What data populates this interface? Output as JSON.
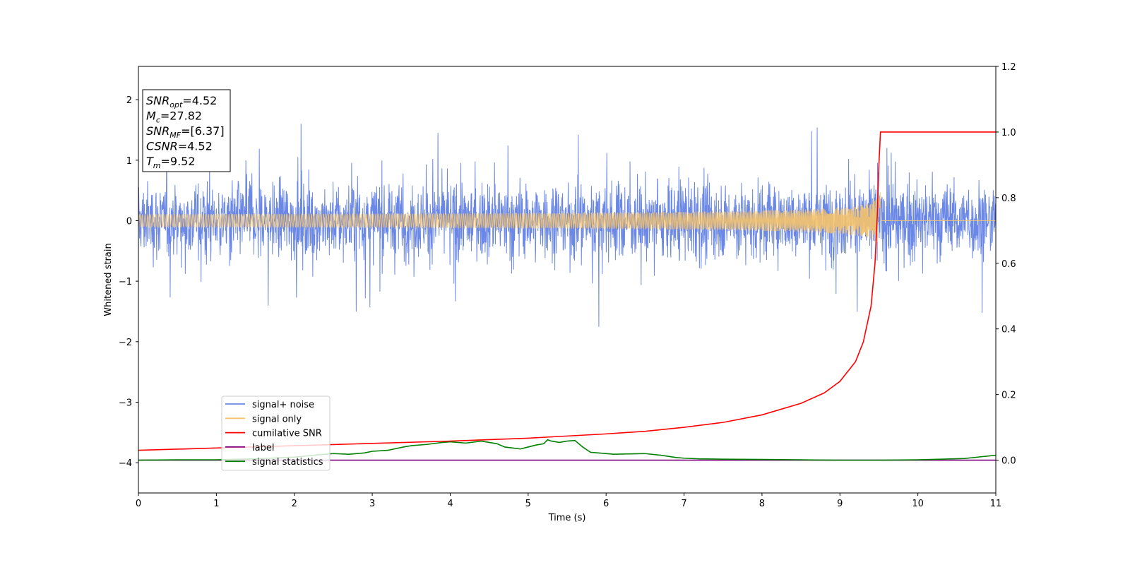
{
  "chart_data": {
    "type": "line",
    "xlabel": "Time (s)",
    "ylabel": "Whitened strain",
    "xlim": [
      0,
      11
    ],
    "ylim_left": [
      -4.5,
      2.55
    ],
    "ylim_right": [
      -0.1,
      1.2
    ],
    "x_ticks": [
      0,
      1,
      2,
      3,
      4,
      5,
      6,
      7,
      8,
      9,
      10,
      11
    ],
    "y_ticks_left": [
      -4,
      -3,
      -2,
      -1,
      0,
      1,
      2
    ],
    "y_ticks_right": [
      0.0,
      0.2,
      0.4,
      0.6,
      0.8,
      1.0,
      1.2
    ],
    "grid": false,
    "legend_placement": "lower-left",
    "info_box": {
      "lines": [
        {
          "italic": "SNR",
          "sub": "opt",
          "rest": "=4.52"
        },
        {
          "italic": "M",
          "sub": "c",
          "rest": "=27.82"
        },
        {
          "italic": "SNR",
          "sub": "MF",
          "rest": "=[6.37]"
        },
        {
          "italic": "CSNR",
          "sub": "",
          "rest": "=4.52"
        },
        {
          "italic": "T",
          "sub": "m",
          "rest": "=9.52"
        }
      ]
    },
    "series": [
      {
        "name": "signal+ noise",
        "axis": "left",
        "color": "#6b88e6",
        "description_values": {
          "mean": 0,
          "amplitude_range": [
            -1.9,
            1.6
          ]
        }
      },
      {
        "name": "signal only",
        "axis": "left",
        "color": "#f5c36b",
        "chirp_merger_time": 9.52,
        "peak_amplitude": 0.5
      },
      {
        "name": "cumilative SNR",
        "axis": "right",
        "color": "#ff0000",
        "x": [
          0,
          1,
          2,
          3,
          4,
          5,
          6,
          6.5,
          7,
          7.5,
          8,
          8.5,
          8.8,
          9.0,
          9.2,
          9.3,
          9.4,
          9.45,
          9.48,
          9.5,
          9.52,
          11
        ],
        "y": [
          0.03,
          0.037,
          0.044,
          0.051,
          0.058,
          0.067,
          0.08,
          0.088,
          0.1,
          0.115,
          0.138,
          0.173,
          0.205,
          0.24,
          0.3,
          0.36,
          0.47,
          0.6,
          0.75,
          0.9,
          1.0,
          1.0
        ]
      },
      {
        "name": "label",
        "axis": "right",
        "color": "#800080",
        "x": [
          0,
          11
        ],
        "y": [
          0,
          0
        ]
      },
      {
        "name": "signal statistics",
        "axis": "right",
        "color": "#008000",
        "x": [
          0,
          0.5,
          1.0,
          1.5,
          2.0,
          2.3,
          2.5,
          2.7,
          2.9,
          3.0,
          3.2,
          3.4,
          3.5,
          3.7,
          3.9,
          4.0,
          4.2,
          4.4,
          4.6,
          4.7,
          4.8,
          4.9,
          5.0,
          5.1,
          5.2,
          5.25,
          5.3,
          5.4,
          5.5,
          5.6,
          5.7,
          5.8,
          5.9,
          6.1,
          6.3,
          6.5,
          6.7,
          6.9,
          7.0,
          7.2,
          7.5,
          8.0,
          8.5,
          9.0,
          9.5,
          10.0,
          10.3,
          10.6,
          10.8,
          11.0
        ],
        "y": [
          0.0,
          0.001,
          0.001,
          0.004,
          0.009,
          0.016,
          0.02,
          0.018,
          0.022,
          0.027,
          0.03,
          0.04,
          0.044,
          0.048,
          0.054,
          0.056,
          0.052,
          0.058,
          0.05,
          0.04,
          0.037,
          0.034,
          0.04,
          0.046,
          0.05,
          0.062,
          0.058,
          0.054,
          0.058,
          0.06,
          0.04,
          0.024,
          0.022,
          0.018,
          0.019,
          0.02,
          0.015,
          0.008,
          0.006,
          0.004,
          0.003,
          0.002,
          0.001,
          0.0,
          0.0,
          0.001,
          0.003,
          0.005,
          0.01,
          0.015
        ]
      }
    ]
  }
}
